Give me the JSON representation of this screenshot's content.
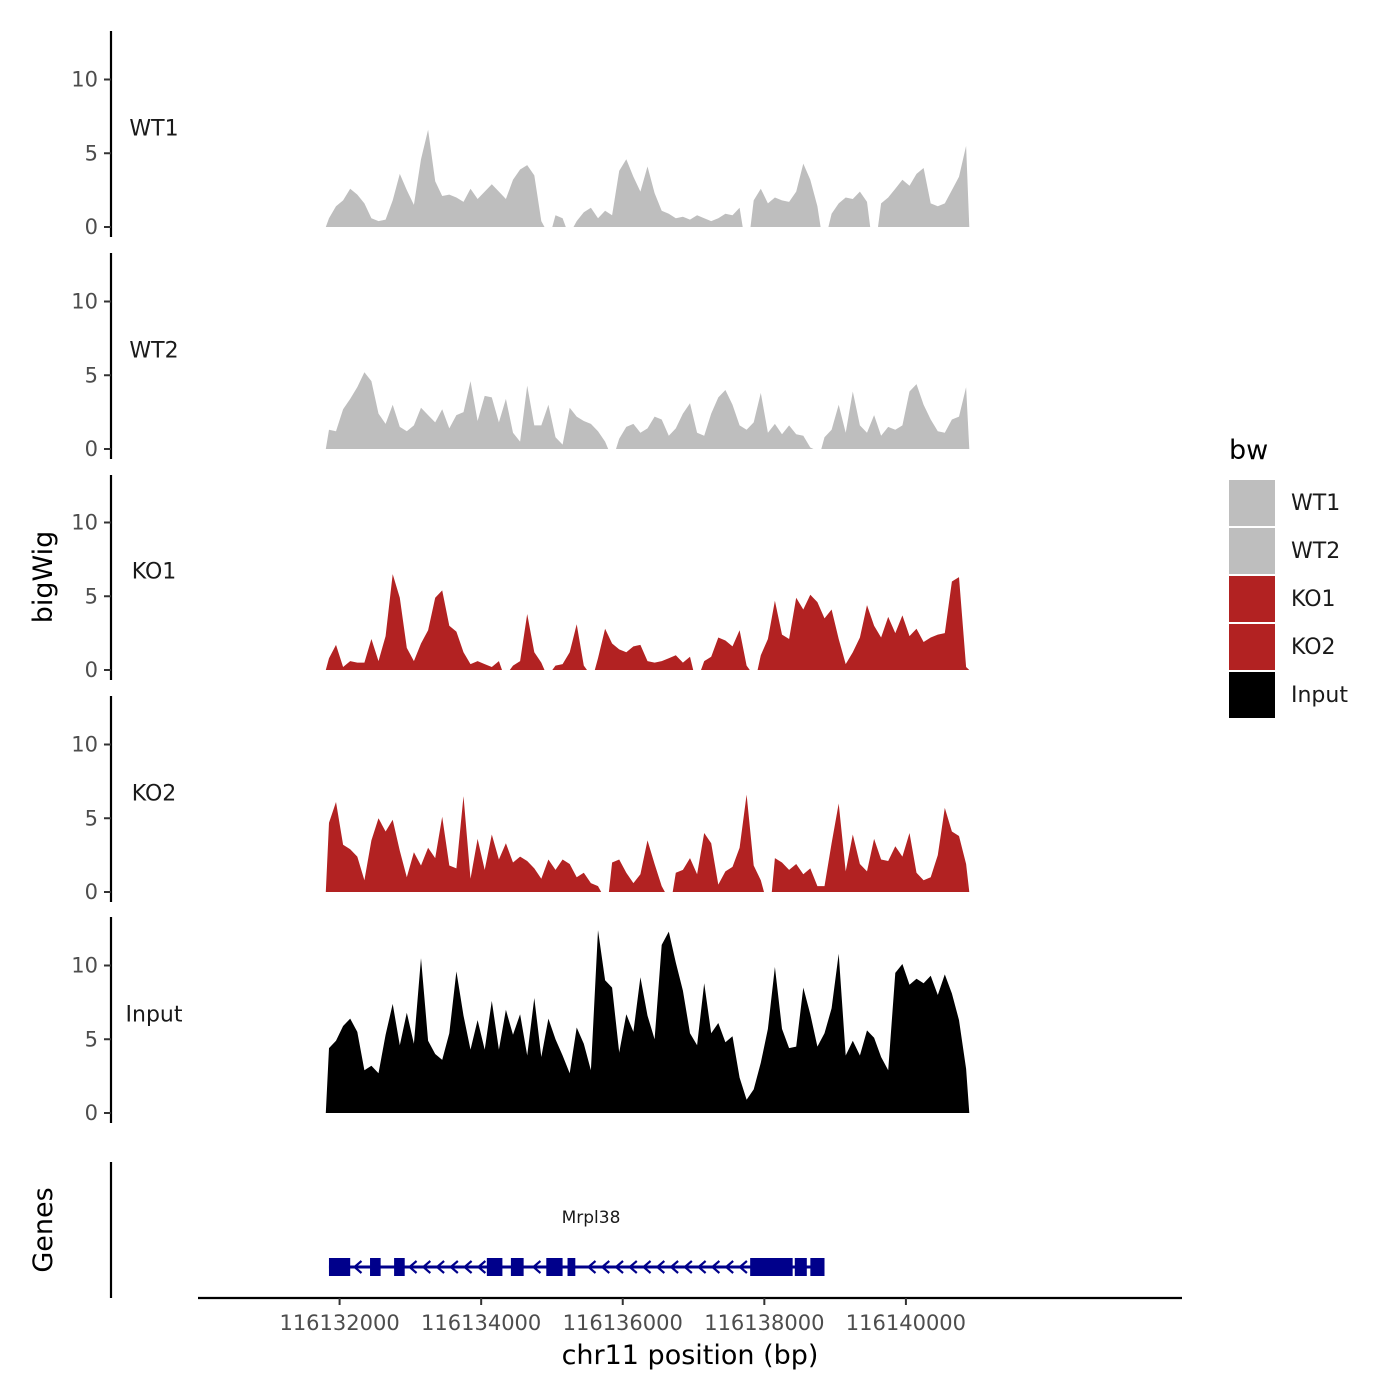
{
  "chart_data": {
    "type": "area",
    "title": "",
    "xlabel": "chr11 position (bp)",
    "ylabel": "bigWig",
    "genes_ylabel": "Genes",
    "xlim": [
      116130000,
      116143900
    ],
    "ylim": [
      0,
      13
    ],
    "x_ticks": [
      116132000,
      116134000,
      116136000,
      116138000,
      116140000
    ],
    "x_tick_labels": [
      "116132000",
      "116134000",
      "116136000",
      "116138000",
      "116140000"
    ],
    "y_ticks": [
      0,
      5,
      10
    ],
    "y_tick_labels": [
      "0",
      "5",
      "10"
    ],
    "legend": {
      "title": "bw",
      "position": "right",
      "entries": [
        {
          "label": "WT1",
          "color": "#bebebe"
        },
        {
          "label": "WT2",
          "color": "#bebebe"
        },
        {
          "label": "KO1",
          "color": "#b22222"
        },
        {
          "label": "KO2",
          "color": "#b22222"
        },
        {
          "label": "Input",
          "color": "#000000"
        }
      ]
    },
    "series": [
      {
        "name": "WT1",
        "color": "#bebebe",
        "x": [
          116131850,
          116131950,
          116132050,
          116132150,
          116132250,
          116132350,
          116132450,
          116132550,
          116132650,
          116132750,
          116132850,
          116132950,
          116133050,
          116133150,
          116133250,
          116133350,
          116133450,
          116133550,
          116133650,
          116133750,
          116133850,
          116133950,
          116134050,
          116134150,
          116134250,
          116134350,
          116134450,
          116134550,
          116134650,
          116134750,
          116134850,
          116134950,
          116135050,
          116135150,
          116135250,
          116135350,
          116135450,
          116135550,
          116135650,
          116135750,
          116135850,
          116135950,
          116136050,
          116136150,
          116136250,
          116136350,
          116136450,
          116136550,
          116136650,
          116136750,
          116136850,
          116136950,
          116137050,
          116137150,
          116137250,
          116137350,
          116137450,
          116137550,
          116137650,
          116137750,
          116137850,
          116137950,
          116138050,
          116138150,
          116138250,
          116138350,
          116138450,
          116138550,
          116138650,
          116138750,
          116138850,
          116138950,
          116139050,
          116139150,
          116139250,
          116139350,
          116139450,
          116139550,
          116139650,
          116139750,
          116139850,
          116139950,
          116140050,
          116140150,
          116140250,
          116140350,
          116140450,
          116140550,
          116140650,
          116140750,
          116140850
        ],
        "values": [
          0.6,
          1.4,
          1.8,
          2.6,
          2.2,
          1.6,
          0.6,
          0.4,
          0.5,
          1.8,
          3.6,
          2.5,
          1.5,
          4.6,
          6.6,
          3.1,
          2.1,
          2.2,
          2.0,
          1.7,
          2.6,
          1.9,
          2.4,
          2.9,
          2.4,
          1.9,
          3.2,
          3.9,
          4.2,
          3.5,
          0.4,
          null,
          0.8,
          0.6,
          null,
          0.4,
          1.0,
          1.3,
          0.6,
          1.1,
          0.8,
          3.8,
          4.6,
          3.4,
          2.4,
          4.1,
          2.3,
          1.1,
          0.9,
          0.6,
          0.7,
          0.5,
          0.8,
          0.6,
          0.4,
          0.6,
          0.9,
          0.8,
          1.3,
          null,
          1.8,
          2.6,
          1.6,
          2.0,
          1.8,
          1.7,
          2.4,
          4.3,
          3.2,
          1.4,
          null,
          0.9,
          1.6,
          2.0,
          1.9,
          2.4,
          1.7,
          null,
          1.6,
          2.0,
          2.6,
          3.2,
          2.8,
          3.6,
          4.0,
          1.6,
          1.4,
          1.6,
          2.5,
          3.4,
          5.5
        ]
      },
      {
        "name": "WT2",
        "color": "#bebebe",
        "x": [
          116131850,
          116131950,
          116132050,
          116132150,
          116132250,
          116132350,
          116132450,
          116132550,
          116132650,
          116132750,
          116132850,
          116132950,
          116133050,
          116133150,
          116133250,
          116133350,
          116133450,
          116133550,
          116133650,
          116133750,
          116133850,
          116133950,
          116134050,
          116134150,
          116134250,
          116134350,
          116134450,
          116134550,
          116134650,
          116134750,
          116134850,
          116134950,
          116135050,
          116135150,
          116135250,
          116135350,
          116135450,
          116135550,
          116135650,
          116135750,
          116135850,
          116135950,
          116136050,
          116136150,
          116136250,
          116136350,
          116136450,
          116136550,
          116136650,
          116136750,
          116136850,
          116136950,
          116137050,
          116137150,
          116137250,
          116137350,
          116137450,
          116137550,
          116137650,
          116137750,
          116137850,
          116137950,
          116138050,
          116138150,
          116138250,
          116138350,
          116138450,
          116138550,
          116138650,
          116138750,
          116138850,
          116138950,
          116139050,
          116139150,
          116139250,
          116139350,
          116139450,
          116139550,
          116139650,
          116139750,
          116139850,
          116139950,
          116140050,
          116140150,
          116140250,
          116140350,
          116140450,
          116140550,
          116140650,
          116140750,
          116140850
        ],
        "values": [
          1.3,
          1.2,
          2.7,
          3.4,
          4.2,
          5.2,
          4.6,
          2.4,
          1.7,
          3.0,
          1.5,
          1.2,
          1.6,
          2.8,
          2.3,
          1.8,
          2.7,
          1.4,
          2.3,
          2.5,
          4.6,
          1.9,
          3.6,
          3.5,
          1.8,
          3.4,
          1.1,
          0.5,
          4.3,
          1.6,
          1.6,
          3.0,
          0.8,
          0.3,
          2.8,
          2.2,
          1.9,
          1.7,
          1.2,
          0.5,
          null,
          0.7,
          1.5,
          1.7,
          1.1,
          1.4,
          2.2,
          2.0,
          0.9,
          1.4,
          2.4,
          3.1,
          1.1,
          0.9,
          2.4,
          3.5,
          4.0,
          3.0,
          1.6,
          1.3,
          1.8,
          3.8,
          1.1,
          1.7,
          1.0,
          1.6,
          1.0,
          0.9,
          0.1,
          null,
          0.8,
          1.3,
          3.0,
          1.1,
          3.9,
          1.6,
          1.1,
          2.3,
          0.9,
          1.5,
          1.3,
          1.6,
          3.9,
          4.4,
          3.0,
          2.0,
          1.2,
          1.1,
          2.0,
          2.2,
          4.2
        ]
      },
      {
        "name": "KO1",
        "color": "#b22222",
        "x": [
          116131850,
          116131950,
          116132050,
          116132150,
          116132250,
          116132350,
          116132450,
          116132550,
          116132650,
          116132750,
          116132850,
          116132950,
          116133050,
          116133150,
          116133250,
          116133350,
          116133450,
          116133550,
          116133650,
          116133750,
          116133850,
          116133950,
          116134050,
          116134150,
          116134250,
          116134350,
          116134450,
          116134550,
          116134650,
          116134750,
          116134850,
          116134950,
          116135050,
          116135150,
          116135250,
          116135350,
          116135450,
          116135550,
          116135650,
          116135750,
          116135850,
          116135950,
          116136050,
          116136150,
          116136250,
          116136350,
          116136450,
          116136550,
          116136650,
          116136750,
          116136850,
          116136950,
          116137050,
          116137150,
          116137250,
          116137350,
          116137450,
          116137550,
          116137650,
          116137750,
          116137850,
          116137950,
          116138050,
          116138150,
          116138250,
          116138350,
          116138450,
          116138550,
          116138650,
          116138750,
          116138850,
          116138950,
          116139050,
          116139150,
          116139250,
          116139350,
          116139450,
          116139550,
          116139650,
          116139750,
          116139850,
          116139950,
          116140050,
          116140150,
          116140250,
          116140350,
          116140450,
          116140550,
          116140650,
          116140750,
          116140850
        ],
        "values": [
          0.8,
          1.7,
          0.2,
          0.6,
          0.5,
          0.5,
          2.1,
          0.6,
          2.3,
          6.5,
          4.9,
          1.5,
          0.6,
          1.8,
          2.7,
          4.9,
          5.4,
          3.0,
          2.6,
          1.2,
          0.4,
          0.6,
          0.4,
          0.2,
          0.6,
          null,
          0.3,
          0.6,
          3.8,
          1.2,
          0.5,
          null,
          0.3,
          0.4,
          1.2,
          3.1,
          0.3,
          null,
          0.8,
          2.8,
          1.8,
          1.4,
          1.2,
          1.6,
          1.7,
          0.6,
          0.5,
          0.6,
          0.8,
          1.0,
          0.5,
          0.9,
          null,
          0.6,
          0.9,
          2.2,
          2.0,
          1.6,
          2.7,
          0.3,
          null,
          1.0,
          2.1,
          4.7,
          2.4,
          2.1,
          4.9,
          4.1,
          5.1,
          4.6,
          3.5,
          4.1,
          2.1,
          0.4,
          1.2,
          2.2,
          4.4,
          3.0,
          2.2,
          3.6,
          2.5,
          3.7,
          2.3,
          2.8,
          1.9,
          2.2,
          2.4,
          2.5,
          6.0,
          6.3,
          0.2
        ]
      },
      {
        "name": "KO2",
        "color": "#b22222",
        "x": [
          116131850,
          116131950,
          116132050,
          116132150,
          116132250,
          116132350,
          116132450,
          116132550,
          116132650,
          116132750,
          116132850,
          116132950,
          116133050,
          116133150,
          116133250,
          116133350,
          116133450,
          116133550,
          116133650,
          116133750,
          116133850,
          116133950,
          116134050,
          116134150,
          116134250,
          116134350,
          116134450,
          116134550,
          116134650,
          116134750,
          116134850,
          116134950,
          116135050,
          116135150,
          116135250,
          116135350,
          116135450,
          116135550,
          116135650,
          116135750,
          116135850,
          116135950,
          116136050,
          116136150,
          116136250,
          116136350,
          116136450,
          116136550,
          116136650,
          116136750,
          116136850,
          116136950,
          116137050,
          116137150,
          116137250,
          116137350,
          116137450,
          116137550,
          116137650,
          116137750,
          116137850,
          116137950,
          116138050,
          116138150,
          116138250,
          116138350,
          116138450,
          116138550,
          116138650,
          116138750,
          116138850,
          116138950,
          116139050,
          116139150,
          116139250,
          116139350,
          116139450,
          116139550,
          116139650,
          116139750,
          116139850,
          116139950,
          116140050,
          116140150,
          116140250,
          116140350,
          116140450,
          116140550,
          116140650,
          116140750,
          116140850
        ],
        "values": [
          4.7,
          6.1,
          3.2,
          2.9,
          2.4,
          0.8,
          3.5,
          5.0,
          4.1,
          4.9,
          2.8,
          1.0,
          2.7,
          1.8,
          3.0,
          2.3,
          5.1,
          1.8,
          1.6,
          6.5,
          0.9,
          3.6,
          1.5,
          3.9,
          2.2,
          3.3,
          2.0,
          2.4,
          2.1,
          1.6,
          0.9,
          2.2,
          1.5,
          2.2,
          1.9,
          1.0,
          1.3,
          0.6,
          0.4,
          null,
          2.0,
          2.2,
          1.3,
          0.6,
          1.2,
          3.5,
          1.9,
          0.4,
          null,
          1.3,
          1.5,
          2.3,
          1.2,
          4.0,
          3.3,
          0.5,
          1.4,
          1.7,
          3.0,
          6.6,
          1.8,
          0.8,
          null,
          2.3,
          2.0,
          1.5,
          1.9,
          1.2,
          1.6,
          0.4,
          0.4,
          3.3,
          6.0,
          1.4,
          3.9,
          1.9,
          1.4,
          3.6,
          2.2,
          2.1,
          3.1,
          2.4,
          4.0,
          1.3,
          0.8,
          1.0,
          2.5,
          5.7,
          4.1,
          3.8,
          1.9
        ]
      },
      {
        "name": "Input",
        "color": "#000000",
        "x": [
          116131850,
          116131950,
          116132050,
          116132150,
          116132250,
          116132350,
          116132450,
          116132550,
          116132650,
          116132750,
          116132850,
          116132950,
          116133050,
          116133150,
          116133250,
          116133350,
          116133450,
          116133550,
          116133650,
          116133750,
          116133850,
          116133950,
          116134050,
          116134150,
          116134250,
          116134350,
          116134450,
          116134550,
          116134650,
          116134750,
          116134850,
          116134950,
          116135050,
          116135150,
          116135250,
          116135350,
          116135450,
          116135550,
          116135650,
          116135750,
          116135850,
          116135950,
          116136050,
          116136150,
          116136250,
          116136350,
          116136450,
          116136550,
          116136650,
          116136750,
          116136850,
          116136950,
          116137050,
          116137150,
          116137250,
          116137350,
          116137450,
          116137550,
          116137650,
          116137750,
          116137850,
          116137950,
          116138050,
          116138150,
          116138250,
          116138350,
          116138450,
          116138550,
          116138650,
          116138750,
          116138850,
          116138950,
          116139050,
          116139150,
          116139250,
          116139350,
          116139450,
          116139550,
          116139650,
          116139750,
          116139850,
          116139950,
          116140050,
          116140150,
          116140250,
          116140350,
          116140450,
          116140550,
          116140650,
          116140750,
          116140850
        ],
        "values": [
          4.4,
          4.9,
          5.9,
          6.4,
          5.5,
          2.9,
          3.2,
          2.7,
          5.3,
          7.4,
          4.6,
          6.8,
          4.7,
          10.5,
          4.9,
          4.0,
          3.6,
          5.4,
          9.6,
          6.6,
          4.3,
          6.3,
          4.3,
          7.6,
          4.3,
          7.0,
          5.3,
          6.7,
          3.9,
          7.8,
          3.8,
          6.4,
          5.0,
          3.9,
          2.7,
          5.8,
          4.7,
          2.9,
          12.4,
          9.0,
          8.5,
          4.1,
          6.7,
          5.5,
          9.2,
          6.6,
          5.0,
          11.4,
          12.3,
          10.2,
          8.3,
          5.4,
          4.6,
          8.8,
          5.4,
          6.1,
          4.8,
          5.2,
          2.4,
          0.9,
          1.6,
          3.4,
          5.7,
          9.9,
          5.7,
          4.4,
          4.5,
          8.5,
          6.7,
          4.5,
          5.4,
          7.1,
          10.8,
          3.9,
          4.9,
          3.9,
          5.6,
          5.1,
          3.8,
          2.9,
          9.5,
          10.1,
          8.7,
          9.1,
          8.8,
          9.3,
          8.0,
          9.4,
          8.1,
          6.3,
          3.0
        ]
      }
    ],
    "genes": [
      {
        "name": "Mrpl38",
        "strand": "-",
        "start": 116131850,
        "end": 116138850,
        "exons": [
          [
            116131850,
            116132150
          ],
          [
            116132430,
            116132580
          ],
          [
            116132770,
            116132920
          ],
          [
            116134080,
            116134300
          ],
          [
            116134420,
            116134600
          ],
          [
            116134920,
            116135150
          ],
          [
            116135220,
            116135330
          ],
          [
            116137800,
            116138400
          ],
          [
            116138430,
            116138600
          ],
          [
            116138650,
            116138850
          ]
        ]
      }
    ]
  }
}
